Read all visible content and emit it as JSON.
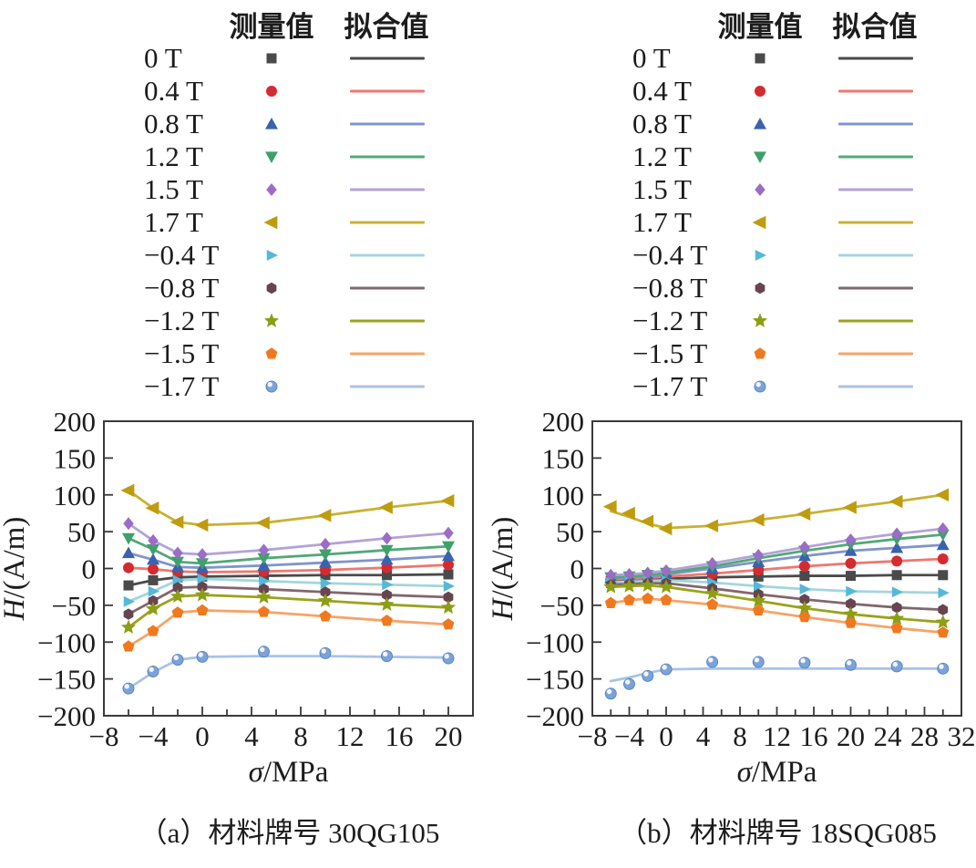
{
  "legend": {
    "measured_header": "测量值",
    "fitted_header": "拟合值",
    "entries": [
      {
        "label": "0 T",
        "marker": "square",
        "marker_color": "#4a4a4a",
        "line_color": "#4a4a4a"
      },
      {
        "label": "0.4 T",
        "marker": "circle",
        "marker_color": "#d42b30",
        "line_color": "#ef776e"
      },
      {
        "label": "0.8 T",
        "marker": "triangle-up",
        "marker_color": "#3a62ae",
        "line_color": "#8094ca"
      },
      {
        "label": "1.2 T",
        "marker": "triangle-down",
        "marker_color": "#3da169",
        "line_color": "#52a876"
      },
      {
        "label": "1.5 T",
        "marker": "diamond",
        "marker_color": "#9c6cc6",
        "line_color": "#b2a3d7"
      },
      {
        "label": "1.7 T",
        "marker": "triangle-left",
        "marker_color": "#bf9c0e",
        "line_color": "#c8b133"
      },
      {
        "label": "−0.4 T",
        "marker": "triangle-right",
        "marker_color": "#55b8d8",
        "line_color": "#a3d5de"
      },
      {
        "label": "−0.8 T",
        "marker": "hexagon",
        "marker_color": "#664450",
        "line_color": "#83666d"
      },
      {
        "label": "−1.2 T",
        "marker": "star",
        "marker_color": "#8c9e14",
        "line_color": "#99a31d"
      },
      {
        "label": "−1.5 T",
        "marker": "pentagon",
        "marker_color": "#f0791f",
        "line_color": "#f5a469"
      },
      {
        "label": "−1.7 T",
        "marker": "sphere",
        "marker_color": "#7ba3d9",
        "line_color": "#a8c3e5"
      }
    ]
  },
  "chart_data": [
    {
      "type": "line",
      "caption": "（a）材料牌号 30QG105",
      "xlabel": "σ/MPa",
      "ylabel": "H/(A/m)",
      "xlim": [
        -8,
        22
      ],
      "ylim": [
        -200,
        200
      ],
      "xticks": [
        -8,
        -4,
        0,
        4,
        8,
        12,
        16,
        20
      ],
      "yticks": [
        -200,
        -150,
        -100,
        -50,
        0,
        50,
        100,
        150,
        200
      ],
      "minor_x_step": 2,
      "grid": false,
      "x": [
        -6,
        -4,
        -2,
        0,
        5,
        10,
        15,
        20
      ],
      "series": [
        {
          "name": "0 T",
          "values": [
            -23,
            -16,
            -12,
            -11,
            -10,
            -9,
            -9,
            -8
          ]
        },
        {
          "name": "0.4 T",
          "values": [
            1,
            -1,
            -4,
            -5,
            -4,
            -2,
            1,
            5
          ]
        },
        {
          "name": "0.8 T",
          "values": [
            21,
            12,
            2,
            1,
            4,
            8,
            12,
            17
          ]
        },
        {
          "name": "1.2 T",
          "values": [
            41,
            26,
            9,
            7,
            14,
            19,
            25,
            30
          ]
        },
        {
          "name": "1.5 T",
          "values": [
            61,
            38,
            21,
            19,
            25,
            33,
            41,
            48
          ]
        },
        {
          "name": "1.7 T",
          "values": [
            106,
            82,
            63,
            59,
            62,
            72,
            83,
            92
          ]
        },
        {
          "name": "−0.4 T",
          "values": [
            -45,
            -31,
            -16,
            -14,
            -17,
            -20,
            -22,
            -24
          ]
        },
        {
          "name": "−0.8 T",
          "values": [
            -62,
            -44,
            -26,
            -25,
            -28,
            -32,
            -36,
            -39
          ]
        },
        {
          "name": "−1.2 T",
          "values": [
            -80,
            -55,
            -38,
            -36,
            -39,
            -44,
            -49,
            -53
          ]
        },
        {
          "name": "−1.5 T",
          "values": [
            -106,
            -85,
            -60,
            -57,
            -59,
            -65,
            -71,
            -76
          ]
        },
        {
          "name": "−1.7 T",
          "values": [
            -163,
            -140,
            -124,
            -120,
            -113,
            -115,
            -119,
            -122
          ],
          "fit": [
            -163,
            -141,
            -124,
            -120,
            -119,
            -119,
            -120,
            -121
          ]
        }
      ]
    },
    {
      "type": "line",
      "caption": "（b）材料牌号 18SQG085",
      "xlabel": "σ/MPa",
      "ylabel": "H/(A/m)",
      "xlim": [
        -8,
        32
      ],
      "ylim": [
        -200,
        200
      ],
      "xticks": [
        -8,
        -4,
        0,
        4,
        8,
        12,
        16,
        20,
        24,
        28,
        32
      ],
      "yticks": [
        -200,
        -150,
        -100,
        -50,
        0,
        50,
        100,
        150,
        200
      ],
      "minor_x_step": 2,
      "grid": false,
      "x": [
        -6,
        -4,
        -2,
        0,
        5,
        10,
        15,
        20,
        25,
        30
      ],
      "series": [
        {
          "name": "0 T",
          "values": [
            -17,
            -16,
            -15,
            -14,
            -12,
            -11,
            -10,
            -10,
            -9,
            -9
          ]
        },
        {
          "name": "0.4 T",
          "values": [
            -15,
            -14,
            -13,
            -11,
            -7,
            -2,
            3,
            7,
            10,
            13
          ]
        },
        {
          "name": "0.8 T",
          "values": [
            -13,
            -12,
            -11,
            -8,
            0,
            9,
            17,
            24,
            28,
            32
          ]
        },
        {
          "name": "1.2 T",
          "values": [
            -12,
            -11,
            -9,
            -6,
            3,
            14,
            24,
            33,
            40,
            46
          ]
        },
        {
          "name": "1.5 T",
          "values": [
            -9,
            -8,
            -6,
            -3,
            7,
            18,
            29,
            39,
            47,
            54
          ]
        },
        {
          "name": "1.7 T",
          "values": [
            84,
            75,
            64,
            54,
            58,
            66,
            74,
            83,
            91,
            100
          ],
          "fit": [
            78,
            70,
            61,
            55,
            58,
            66,
            74,
            83,
            91,
            100
          ]
        },
        {
          "name": "−0.4 T",
          "values": [
            -19,
            -18,
            -17,
            -16,
            -19,
            -24,
            -28,
            -31,
            -32,
            -33
          ]
        },
        {
          "name": "−0.8 T",
          "values": [
            -22,
            -21,
            -20,
            -20,
            -27,
            -35,
            -42,
            -48,
            -53,
            -56
          ]
        },
        {
          "name": "−1.2 T",
          "values": [
            -25,
            -24,
            -23,
            -25,
            -34,
            -44,
            -54,
            -62,
            -68,
            -73
          ]
        },
        {
          "name": "−1.5 T",
          "values": [
            -47,
            -43,
            -41,
            -43,
            -49,
            -57,
            -66,
            -74,
            -81,
            -87
          ]
        },
        {
          "name": "−1.7 T",
          "values": [
            -170,
            -157,
            -146,
            -137,
            -127,
            -127,
            -128,
            -131,
            -133,
            -136
          ],
          "fit": [
            -153,
            -148,
            -142,
            -137,
            -136,
            -136,
            -136,
            -136,
            -136,
            -136
          ]
        }
      ]
    }
  ]
}
